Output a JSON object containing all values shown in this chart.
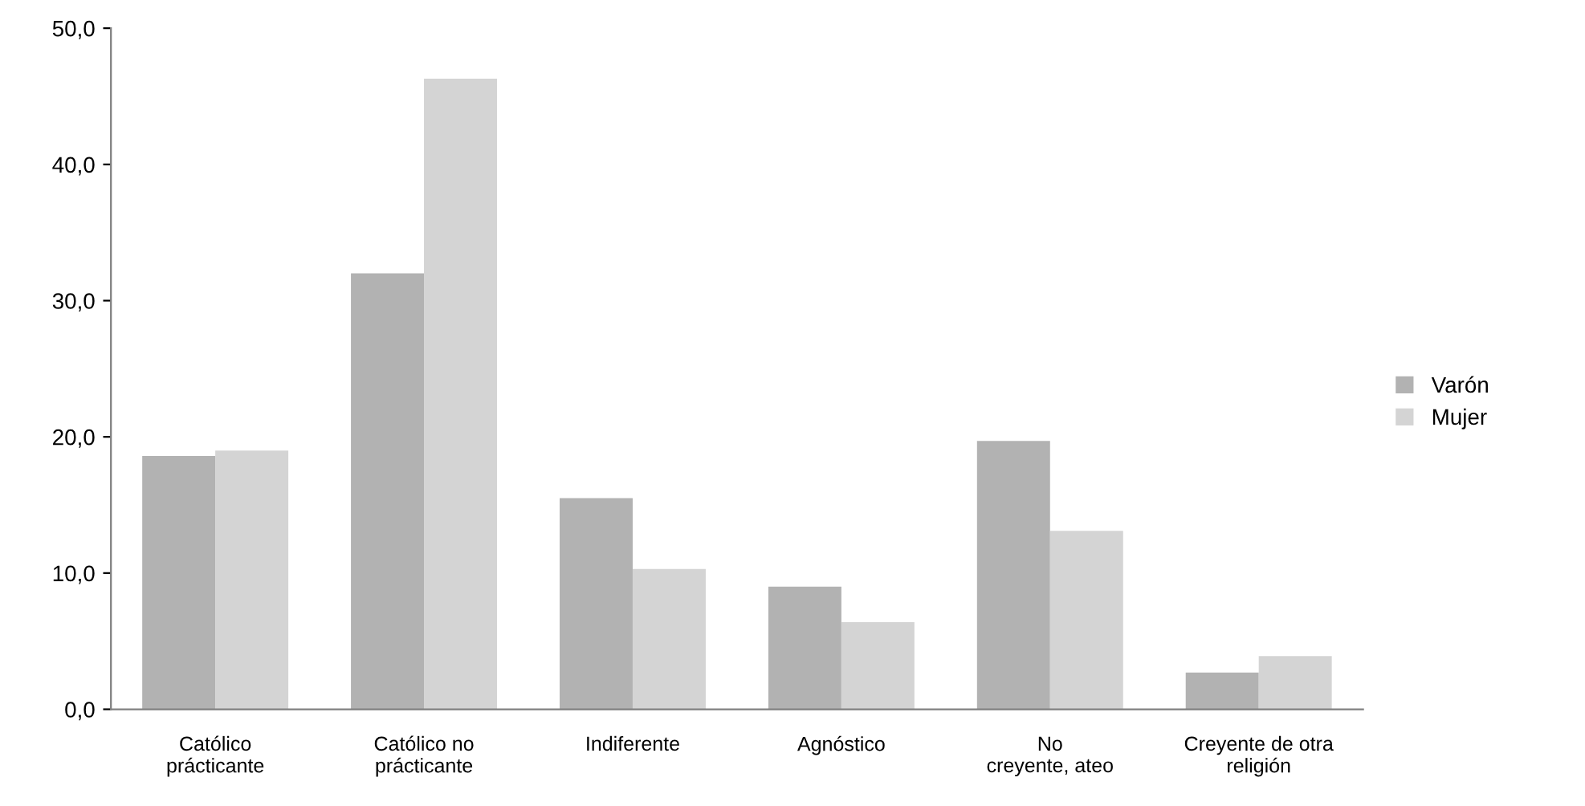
{
  "chart_data": {
    "type": "bar",
    "categories": [
      "Católico\nprácticante",
      "Católico no\nprácticante",
      "Indiferente",
      "Agnóstico",
      "No\ncreyente, ateo",
      "Creyente de otra\nreligión"
    ],
    "series": [
      {
        "name": "Varón",
        "color": "#b2b2b2",
        "values": [
          18.6,
          32.0,
          15.5,
          9.0,
          19.7,
          2.7
        ]
      },
      {
        "name": "Mujer",
        "color": "#d4d4d4",
        "values": [
          19.0,
          46.3,
          10.3,
          6.4,
          13.1,
          3.9
        ]
      }
    ],
    "ylim": [
      0,
      50
    ],
    "yticks": [
      {
        "value": 0,
        "label": "0,0"
      },
      {
        "value": 10,
        "label": "10,0"
      },
      {
        "value": 20,
        "label": "20,0"
      },
      {
        "value": 30,
        "label": "30,0"
      },
      {
        "value": 40,
        "label": "40,0"
      },
      {
        "value": 50,
        "label": "50,0"
      }
    ],
    "grid": false,
    "legend": "right"
  }
}
